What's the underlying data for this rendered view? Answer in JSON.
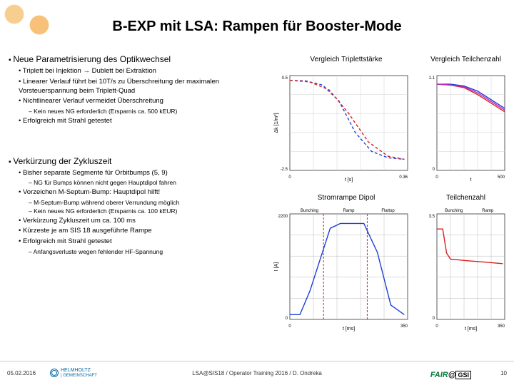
{
  "title": "B-EXP mit LSA: Rampen für Booster-Mode",
  "section1": {
    "head": "Neue Parametrisierung des Optikwechsel",
    "b1": "Triplett bei Injektion → Dublett bei Extraktion",
    "b2": "Linearer Verlauf führt bei 10T/s zu Überschreitung der maximalen Vorsteuerspannung beim Triplett-Quad",
    "b3": "Nichtlinearer Verlauf vermeidet Überschreitung",
    "b3a": "Kein neues NG erforderlich (Ersparnis ca. 500 kEUR)",
    "b4": "Erfolgreich mit Strahl getestet"
  },
  "section2": {
    "head": "Verkürzung der Zykluszeit",
    "b1": "Bisher separate Segmente für Orbitbumps (5, 9)",
    "b1a": "NG für Bumps können nicht gegen Hauptdipol fahren",
    "b2": "Vorzeichen M-Septum-Bump: Hauptdipol hilft!",
    "b2a": "M-Septum-Bump während oberer Verrundung möglich",
    "b2b": "Kein neues NG erforderlich (Ersparnis ca. 100 kEUR)",
    "b3": "Verkürzung Zykluszeit um ca. 100 ms",
    "b4": "Kürzeste je am SIS 18 ausgeführte Rampe",
    "b5": "Erfolgreich mit Strahl getestet",
    "b5a": "Anfangsverluste wegen fehlender HF-Spannung"
  },
  "labels": {
    "c1": "Vergleich Triplettstärke",
    "c2": "Vergleich Teilchenzahl",
    "c3": "Stromrampe Dipol",
    "c4": "Teilchenzahl"
  },
  "footer": {
    "date": "05.02.2016",
    "mid": "LSA@SIS18 / Operator Training 2016 / D. Ondreka",
    "page": "10",
    "helm": "HELMHOLTZ",
    "helm2": "| GEMEINSCHAFT",
    "fair": "FAIR",
    "at": "@",
    "gsi": "GSI"
  },
  "charts": {
    "c1": {
      "type": "line",
      "bg": "#ffffff",
      "grid": "#d0d0d0",
      "xlim": [
        0,
        0.36
      ],
      "ylim": [
        -2.5,
        0.5
      ],
      "series": [
        {
          "color": "#1f3fd8",
          "dash": "4 3",
          "pts": [
            [
              0,
              0.35
            ],
            [
              0.05,
              0.33
            ],
            [
              0.1,
              0.2
            ],
            [
              0.15,
              -0.3
            ],
            [
              0.2,
              -1.3
            ],
            [
              0.25,
              -1.9
            ],
            [
              0.3,
              -2.1
            ],
            [
              0.35,
              -2.15
            ]
          ]
        },
        {
          "color": "#d81f1f",
          "dash": "4 3",
          "pts": [
            [
              0,
              0.35
            ],
            [
              0.06,
              0.3
            ],
            [
              0.12,
              0.05
            ],
            [
              0.18,
              -0.7
            ],
            [
              0.24,
              -1.6
            ],
            [
              0.3,
              -2.05
            ],
            [
              0.35,
              -2.15
            ]
          ]
        }
      ],
      "xlabel": "t [s]",
      "ylabel": "Δk [1/m²]"
    },
    "c2": {
      "type": "line",
      "bg": "#ffffff",
      "grid": "#d0d0d0",
      "xlim": [
        0,
        500
      ],
      "ylim": [
        0,
        1.1
      ],
      "series": [
        {
          "color": "#1f3fd8",
          "pts": [
            [
              0,
              1.0
            ],
            [
              100,
              1.0
            ],
            [
              200,
              0.98
            ],
            [
              300,
              0.92
            ],
            [
              400,
              0.82
            ],
            [
              500,
              0.72
            ]
          ]
        },
        {
          "color": "#d81f1f",
          "pts": [
            [
              0,
              1.0
            ],
            [
              100,
              0.99
            ],
            [
              200,
              0.96
            ],
            [
              300,
              0.88
            ],
            [
              400,
              0.78
            ],
            [
              500,
              0.68
            ]
          ]
        },
        {
          "color": "#c026c0",
          "pts": [
            [
              0,
              1.0
            ],
            [
              100,
              0.99
            ],
            [
              200,
              0.97
            ],
            [
              300,
              0.9
            ],
            [
              400,
              0.8
            ],
            [
              500,
              0.7
            ]
          ]
        }
      ],
      "xlabel": "t"
    },
    "c3": {
      "type": "line",
      "bg": "#ffffff",
      "grid": "#b8b8b8",
      "xlim": [
        0,
        350
      ],
      "ylim": [
        0,
        2200
      ],
      "series": [
        {
          "color": "#1f3fd8",
          "pts": [
            [
              0,
              100
            ],
            [
              30,
              100
            ],
            [
              60,
              600
            ],
            [
              120,
              1900
            ],
            [
              150,
              2000
            ],
            [
              220,
              2000
            ],
            [
              260,
              1400
            ],
            [
              300,
              300
            ],
            [
              340,
              100
            ]
          ]
        }
      ],
      "vlines": [
        {
          "x": 100,
          "color": "#d81f1f"
        },
        {
          "x": 230,
          "color": "#d81f1f"
        }
      ],
      "toplabels": [
        "Bunching",
        "Ramp",
        "Flattop"
      ],
      "xlabel": "t [ms]",
      "ylabel": "I [A]"
    },
    "c4": {
      "type": "line",
      "bg": "#ffffff",
      "grid": "#b8b8b8",
      "xlim": [
        0,
        350
      ],
      "ylim": [
        0,
        3.5
      ],
      "series": [
        {
          "color": "#d81f1f",
          "pts": [
            [
              0,
              3.0
            ],
            [
              30,
              3.0
            ],
            [
              50,
              2.2
            ],
            [
              70,
              2.0
            ],
            [
              150,
              1.95
            ],
            [
              250,
              1.9
            ],
            [
              340,
              1.85
            ]
          ]
        }
      ],
      "toplabels": [
        "Bunching",
        "Ramp"
      ],
      "xlabel": "t [ms]"
    }
  },
  "style": {
    "title_fontsize": 20,
    "body_fontsize": 10,
    "sub_fontsize": 8.5,
    "chart_label_fontsize": 10
  }
}
